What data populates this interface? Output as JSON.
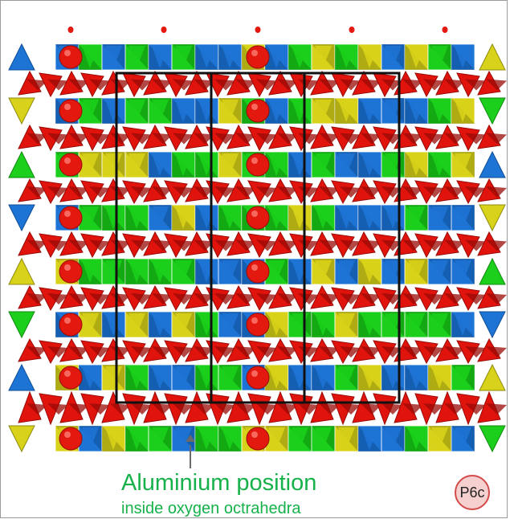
{
  "caption": {
    "title": "Aluminium position",
    "subtitle": "inside oxygen octrahedra"
  },
  "badge": {
    "label": "P6c"
  },
  "colors": {
    "oxygen_red": "#e0140c",
    "oxygen_dark": "#9a0a06",
    "tetra_green": "#1ccf1c",
    "tetra_green_dark": "#0d8a0d",
    "tetra_blue": "#1e74d4",
    "tetra_blue_dark": "#0f4e96",
    "tetra_yellow": "#d8d21a",
    "tetra_yellow_dark": "#8e8a0c",
    "ion": "#e3190f",
    "cell_outline": "#111111",
    "pointer": "#6a6a6a",
    "caption": "#16b14a"
  }
}
